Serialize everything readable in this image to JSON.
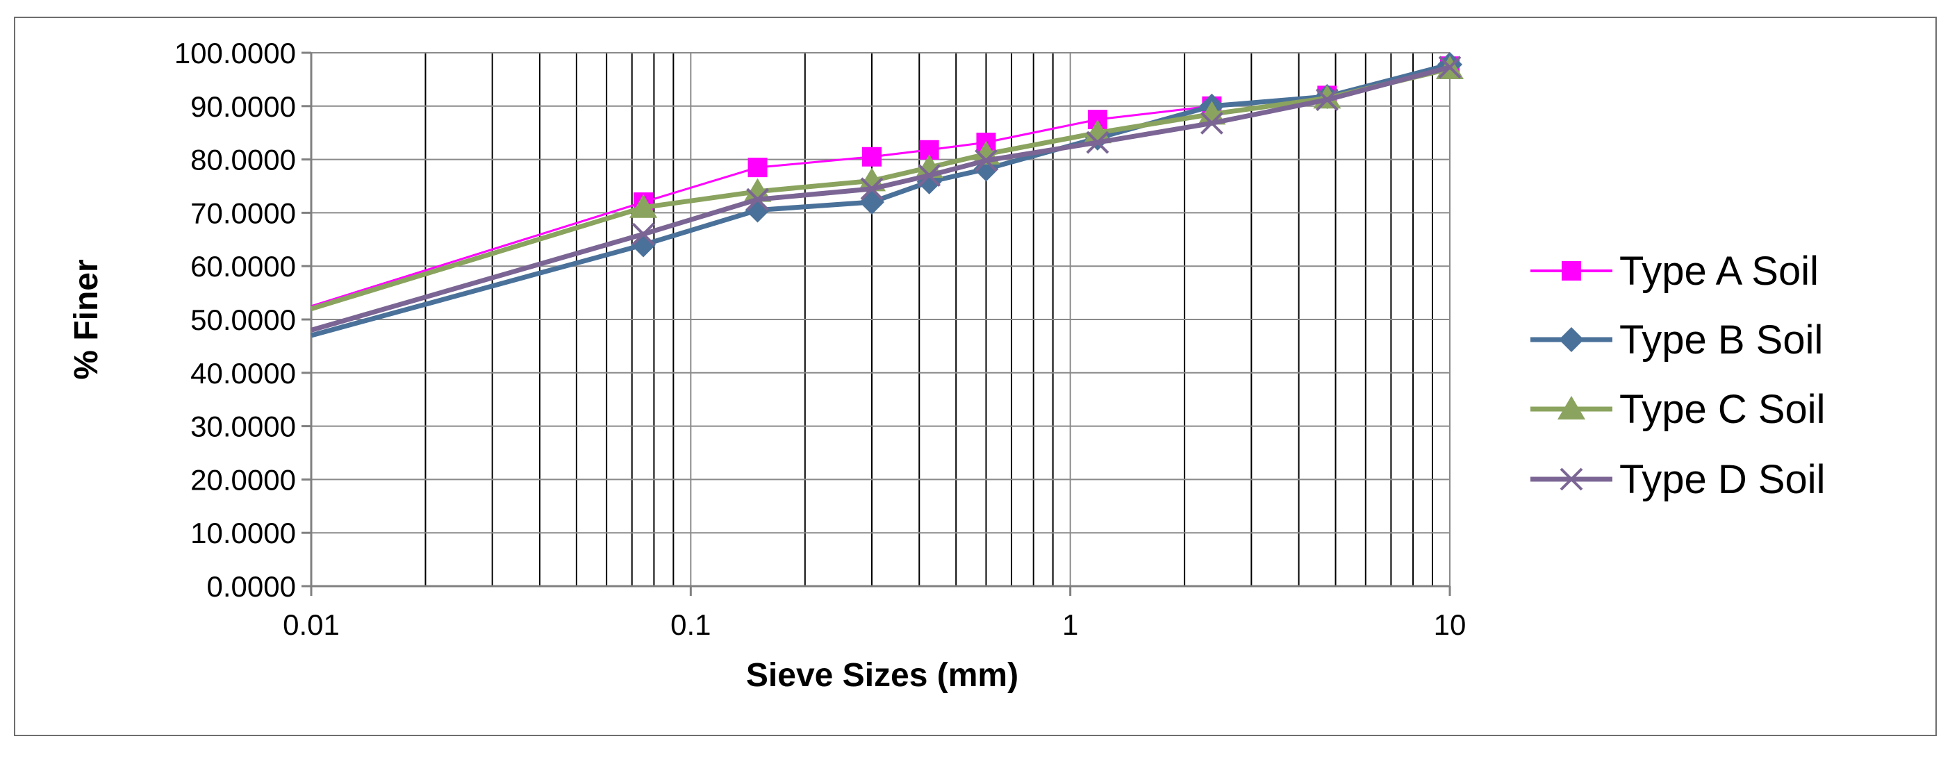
{
  "chart_data": {
    "type": "line",
    "title": "",
    "xlabel": "Sieve Sizes (mm)",
    "ylabel": "% Finer",
    "xscale": "log",
    "xlim": [
      0.01,
      10
    ],
    "ylim": [
      0,
      100
    ],
    "x_ticks": [
      "0.01",
      "0.1",
      "1",
      "10"
    ],
    "y_ticks": [
      "0.0000",
      "10.0000",
      "20.0000",
      "30.0000",
      "40.0000",
      "50.0000",
      "60.0000",
      "70.0000",
      "80.0000",
      "90.0000",
      "100.0000"
    ],
    "grid": true,
    "legend_position": "right",
    "series": [
      {
        "name": "Type A Soil",
        "color": "#ff00ff",
        "marker": "square",
        "x": [
          0.01,
          0.075,
          0.15,
          0.3,
          0.425,
          0.6,
          1.18,
          2.36,
          4.75,
          10
        ],
        "y": [
          52.5,
          72.0,
          78.5,
          80.5,
          81.8,
          83.2,
          87.5,
          90.0,
          92.0,
          97.5
        ]
      },
      {
        "name": "Type B Soil",
        "color": "#4a7199",
        "marker": "diamond",
        "x": [
          0.01,
          0.075,
          0.15,
          0.3,
          0.425,
          0.6,
          1.18,
          2.36,
          4.75,
          10
        ],
        "y": [
          47.0,
          64.0,
          70.5,
          72.0,
          75.8,
          78.2,
          84.0,
          90.0,
          91.8,
          97.8
        ]
      },
      {
        "name": "Type C Soil",
        "color": "#8aa35e",
        "marker": "triangle",
        "x": [
          0.01,
          0.075,
          0.15,
          0.3,
          0.425,
          0.6,
          1.18,
          2.36,
          4.75,
          10
        ],
        "y": [
          52.0,
          71.0,
          74.0,
          76.0,
          78.5,
          81.0,
          85.0,
          88.5,
          91.5,
          97.0
        ]
      },
      {
        "name": "Type D Soil",
        "color": "#7b6594",
        "marker": "x",
        "x": [
          0.01,
          0.075,
          0.15,
          0.3,
          0.425,
          0.6,
          1.18,
          2.36,
          4.75,
          10
        ],
        "y": [
          48.0,
          66.0,
          72.5,
          74.5,
          77.0,
          79.8,
          83.2,
          86.8,
          91.2,
          97.3
        ]
      }
    ]
  }
}
